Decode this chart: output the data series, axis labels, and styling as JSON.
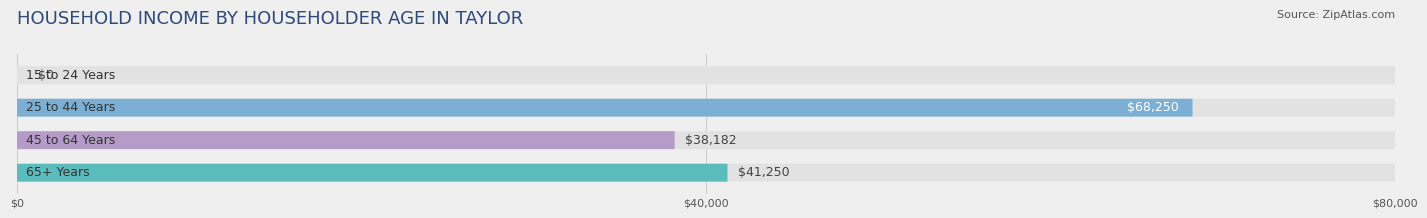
{
  "title": "HOUSEHOLD INCOME BY HOUSEHOLDER AGE IN TAYLOR",
  "source": "Source: ZipAtlas.com",
  "categories": [
    "15 to 24 Years",
    "25 to 44 Years",
    "45 to 64 Years",
    "65+ Years"
  ],
  "values": [
    0,
    68250,
    38182,
    41250
  ],
  "labels": [
    "$0",
    "$68,250",
    "$38,182",
    "$41,250"
  ],
  "bar_colors": [
    "#f4a0a0",
    "#7bafd4",
    "#b59cc8",
    "#5bbcbe"
  ],
  "background_color": "#efefef",
  "bar_bg_color": "#e2e2e2",
  "xlim": [
    0,
    80000
  ],
  "xticks": [
    0,
    40000,
    80000
  ],
  "xticklabels": [
    "$0",
    "$40,000",
    "$80,000"
  ],
  "title_fontsize": 13,
  "label_fontsize": 9,
  "category_fontsize": 9,
  "bar_height": 0.55
}
